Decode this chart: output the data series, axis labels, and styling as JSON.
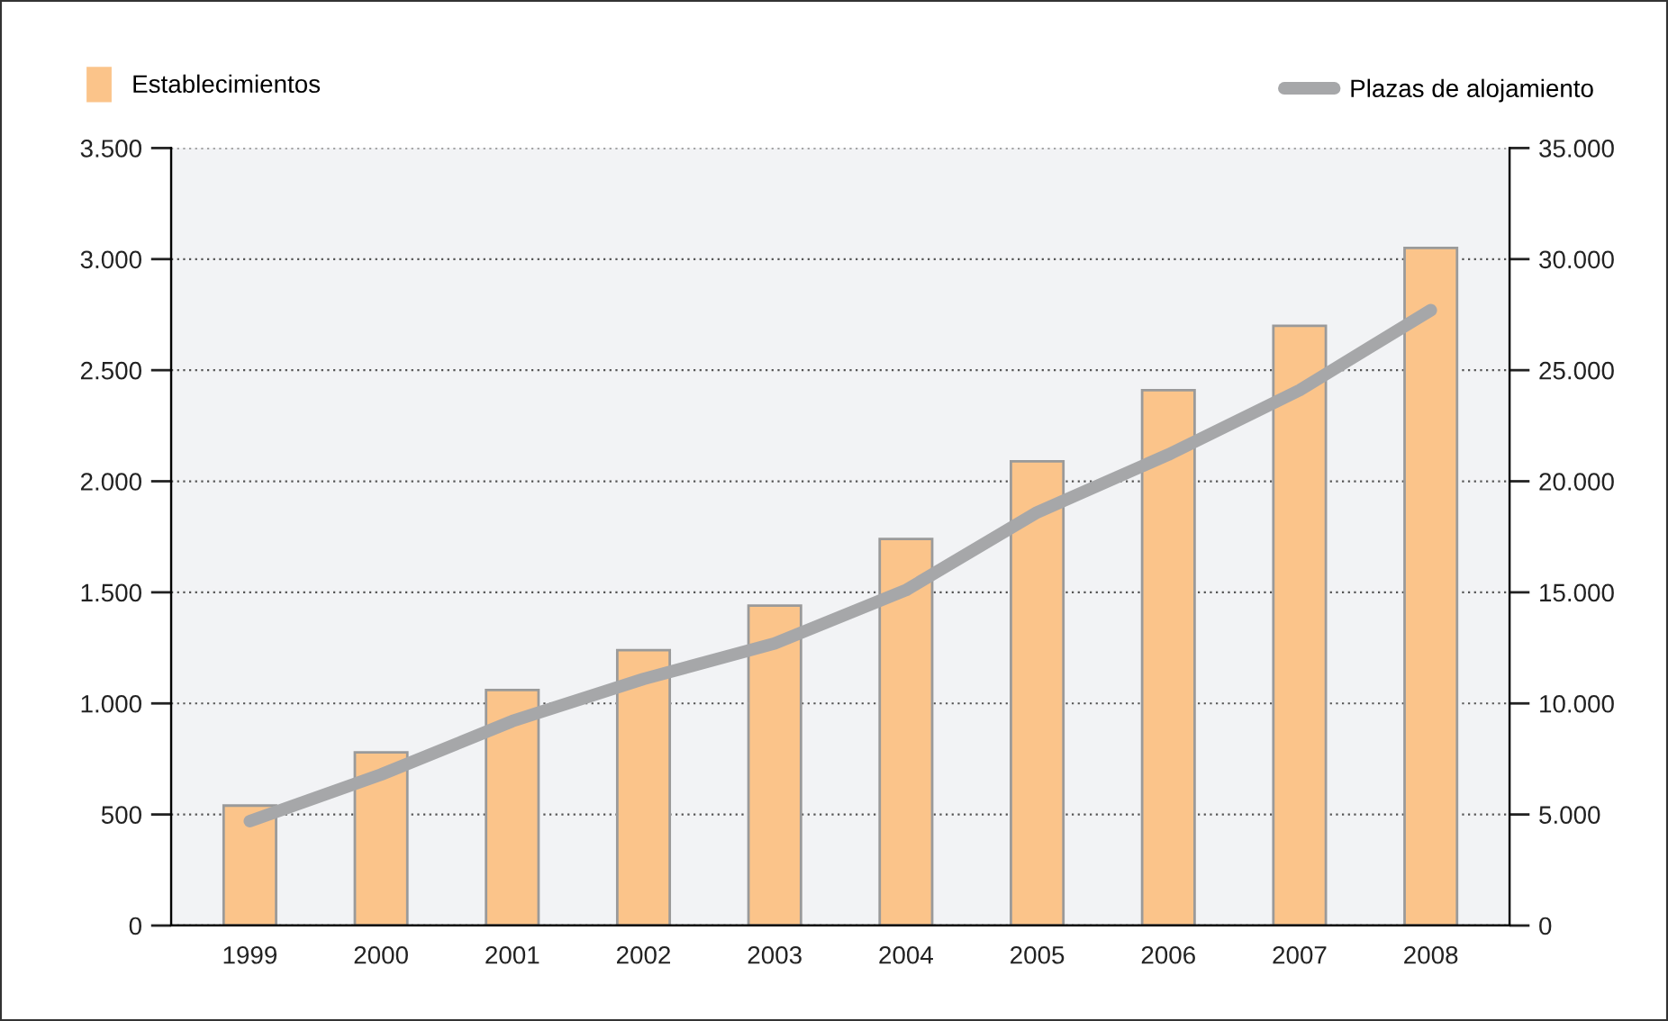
{
  "chart_data": {
    "type": "bar",
    "categories": [
      "1999",
      "2000",
      "2001",
      "2002",
      "2003",
      "2004",
      "2005",
      "2006",
      "2007",
      "2008"
    ],
    "series": [
      {
        "name": "Establecimientos",
        "color": "#fbc48a",
        "values": [
          540,
          780,
          1060,
          1240,
          1440,
          1740,
          2090,
          2410,
          2700,
          3050
        ]
      },
      {
        "name": "Plazas de alojamiento",
        "type": "line",
        "axis": "y2",
        "color": "#a6a7a9",
        "values": [
          4700,
          6800,
          9200,
          11100,
          12700,
          15100,
          18600,
          21200,
          24100,
          27700
        ]
      }
    ],
    "ylim": [
      0,
      3500
    ],
    "yticks": [
      0,
      500,
      {
        "value": 1000,
        "label": "1.000"
      },
      {
        "value": 1500,
        "label": "1.500"
      },
      {
        "value": 2000,
        "label": "2.000"
      },
      {
        "value": 2500,
        "label": "2.500"
      },
      {
        "value": 3000,
        "label": "3.000"
      },
      {
        "value": 3500,
        "label": "3.500"
      }
    ],
    "y2lim": [
      0,
      35000
    ],
    "y2ticks": [
      0,
      {
        "value": 5000,
        "label": "5.000"
      },
      {
        "value": 10000,
        "label": "10.000"
      },
      {
        "value": 15000,
        "label": "15.000"
      },
      {
        "value": 20000,
        "label": "20.000"
      },
      {
        "value": 25000,
        "label": "25.000"
      },
      {
        "value": 30000,
        "label": "30.000"
      },
      {
        "value": 35000,
        "label": "35.000"
      }
    ],
    "grid": "y",
    "legend": "top",
    "line_style": "solid",
    "marker": "none"
  }
}
